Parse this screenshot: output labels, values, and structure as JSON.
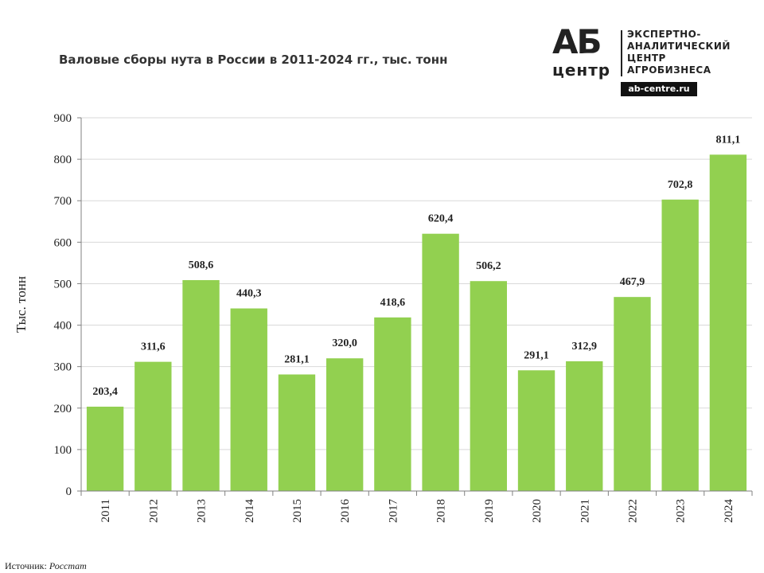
{
  "title": "Валовые сборы нута в России в 2011-2024 гг., тыс. тонн",
  "logo": {
    "ab": "АБ",
    "center": "центр",
    "lines": [
      "ЭКСПЕРТНО-",
      "АНАЛИТИЧЕСКИЙ",
      "ЦЕНТР",
      "АГРОБИЗНЕСА"
    ],
    "url": "ab-centre.ru"
  },
  "source": {
    "label": "Источник:",
    "value": "Росстат"
  },
  "colors": {
    "bar": "#92D050",
    "grid": "#D9D9D9",
    "axis": "#808080"
  },
  "chart_data": {
    "type": "bar",
    "title": "Валовые сборы нута в России в 2011-2024 гг., тыс. тонн",
    "xlabel": "",
    "ylabel": "Тыс. тонн",
    "ylim": [
      0,
      900
    ],
    "yticks": [
      0,
      100,
      200,
      300,
      400,
      500,
      600,
      700,
      800,
      900
    ],
    "grid": true,
    "categories": [
      "2011",
      "2012",
      "2013",
      "2014",
      "2015",
      "2016",
      "2017",
      "2018",
      "2019",
      "2020",
      "2021",
      "2022",
      "2023",
      "2024"
    ],
    "values": [
      203.4,
      311.6,
      508.6,
      440.3,
      281.1,
      320.0,
      418.6,
      620.4,
      506.2,
      291.1,
      312.9,
      467.9,
      702.8,
      811.1
    ],
    "value_labels": [
      "203,4",
      "311,6",
      "508,6",
      "440,3",
      "281,1",
      "320,0",
      "418,6",
      "620,4",
      "506,2",
      "291,1",
      "312,9",
      "467,9",
      "702,8",
      "811,1"
    ]
  }
}
